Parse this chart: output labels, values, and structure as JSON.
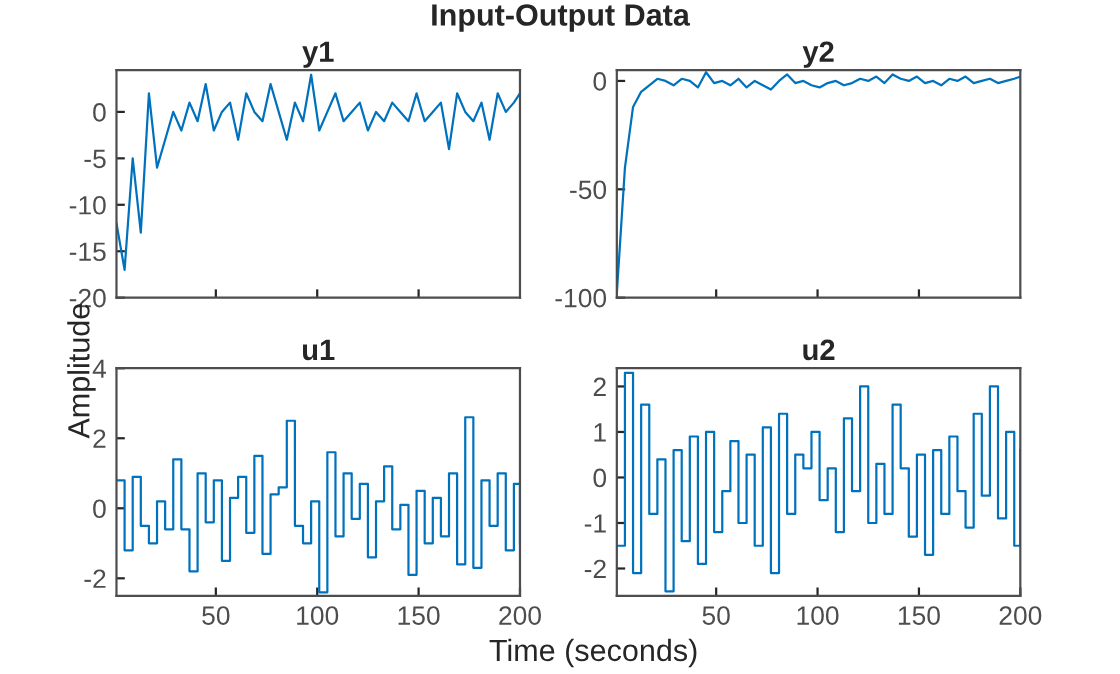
{
  "chart_data": [
    {
      "type": "line",
      "title": "y1",
      "annotations": [
        "Input-Output Data"
      ],
      "tick_labels": "y",
      "x": [
        1,
        5,
        9,
        13,
        17,
        21,
        25,
        29,
        33,
        37,
        41,
        45,
        49,
        53,
        57,
        61,
        65,
        69,
        73,
        77,
        81,
        85,
        89,
        93,
        97,
        101,
        105,
        109,
        113,
        117,
        121,
        125,
        129,
        133,
        137,
        141,
        145,
        149,
        153,
        157,
        161,
        165,
        169,
        173,
        177,
        181,
        185,
        189,
        193,
        197,
        200
      ],
      "series": [
        {
          "color": "#0072bd",
          "values": [
            -12,
            -17,
            -5,
            -13,
            2,
            -6,
            -3,
            0,
            -2,
            1,
            -1,
            3,
            -2,
            0,
            1,
            -3,
            2,
            0,
            -1,
            3,
            0,
            -3,
            1,
            -1,
            4,
            -2,
            0,
            2,
            -1,
            0,
            1,
            -2,
            0,
            -1,
            1,
            0,
            -1,
            2,
            -1,
            0,
            1,
            -4,
            2,
            0,
            -1,
            1,
            -3,
            2,
            0,
            1,
            2
          ]
        }
      ],
      "xlim": [
        1,
        200
      ],
      "xticks": [
        {
          "value": 50,
          "label": null
        },
        {
          "value": 100,
          "label": null
        },
        {
          "value": 150,
          "label": null
        }
      ],
      "ylim": [
        -20,
        4.5
      ],
      "yticks": [
        -20,
        -15,
        -10,
        -5,
        0
      ]
    },
    {
      "type": "line",
      "title": "y2",
      "tick_labels": "y",
      "x": [
        1,
        5,
        9,
        13,
        17,
        21,
        25,
        29,
        33,
        37,
        41,
        45,
        49,
        53,
        57,
        61,
        65,
        69,
        73,
        77,
        81,
        85,
        89,
        93,
        97,
        101,
        105,
        109,
        113,
        117,
        121,
        125,
        129,
        133,
        137,
        141,
        145,
        149,
        153,
        157,
        161,
        165,
        169,
        173,
        177,
        181,
        185,
        189,
        193,
        197,
        200
      ],
      "series": [
        {
          "color": "#0072bd",
          "values": [
            -98,
            -40,
            -12,
            -5,
            -2,
            1,
            0,
            -2,
            1,
            0,
            -3,
            4,
            -1,
            0,
            -2,
            1,
            -3,
            0,
            -2,
            -4,
            0,
            3,
            -1,
            0,
            -2,
            -3,
            -1,
            0,
            -2,
            -1,
            1,
            0,
            2,
            -1,
            3,
            1,
            0,
            2,
            -1,
            0,
            -2,
            1,
            0,
            2,
            -1,
            0,
            1,
            -1,
            0,
            1,
            2
          ]
        }
      ],
      "xlim": [
        1,
        200
      ],
      "xticks": [
        {
          "value": 50,
          "label": null
        },
        {
          "value": 100,
          "label": null
        },
        {
          "value": 150,
          "label": null
        }
      ],
      "ylim": [
        -100,
        5
      ],
      "yticks": [
        -100,
        -50,
        0
      ]
    },
    {
      "type": "step",
      "title": "u1",
      "ylabel": "Amplitude",
      "xlabel": "Time (seconds)",
      "x": [
        1,
        5,
        9,
        13,
        17,
        21,
        25,
        29,
        33,
        37,
        41,
        45,
        49,
        53,
        57,
        61,
        65,
        69,
        73,
        77,
        81,
        85,
        89,
        93,
        97,
        101,
        105,
        109,
        113,
        117,
        121,
        125,
        129,
        133,
        137,
        141,
        145,
        149,
        153,
        157,
        161,
        165,
        169,
        173,
        177,
        181,
        185,
        189,
        193,
        197,
        200
      ],
      "series": [
        {
          "color": "#0072bd",
          "values": [
            0.8,
            -1.2,
            0.9,
            -0.5,
            -1.0,
            0.2,
            -0.6,
            1.4,
            -0.6,
            -1.8,
            1.0,
            -0.4,
            0.8,
            -1.5,
            0.3,
            0.9,
            -0.7,
            1.5,
            -1.3,
            0.4,
            0.6,
            2.5,
            -0.5,
            -1.0,
            0.2,
            -2.4,
            1.6,
            -0.8,
            1.0,
            -0.3,
            0.7,
            -1.4,
            0.2,
            1.2,
            -0.6,
            0.1,
            -1.9,
            0.5,
            -1.0,
            0.3,
            -0.8,
            1.0,
            -1.6,
            2.6,
            -1.7,
            0.8,
            -0.5,
            1.0,
            -1.2,
            0.7,
            -1.0
          ]
        }
      ],
      "xlim": [
        1,
        200
      ],
      "xticks": [
        50,
        100,
        150,
        200
      ],
      "ylim": [
        -2.5,
        4
      ],
      "yticks": [
        -2,
        0,
        2,
        4
      ]
    },
    {
      "type": "step",
      "title": "u2",
      "x": [
        1,
        5,
        9,
        13,
        17,
        21,
        25,
        29,
        33,
        37,
        41,
        45,
        49,
        53,
        57,
        61,
        65,
        69,
        73,
        77,
        81,
        85,
        89,
        93,
        97,
        101,
        105,
        109,
        113,
        117,
        121,
        125,
        129,
        133,
        137,
        141,
        145,
        149,
        153,
        157,
        161,
        165,
        169,
        173,
        177,
        181,
        185,
        189,
        193,
        197,
        200
      ],
      "series": [
        {
          "color": "#0072bd",
          "values": [
            -1.5,
            2.3,
            -2.1,
            1.6,
            -0.8,
            0.4,
            -2.5,
            0.6,
            -1.4,
            0.9,
            -1.9,
            1.0,
            -1.2,
            -0.3,
            0.8,
            -1.0,
            0.5,
            -1.5,
            1.1,
            -2.1,
            1.4,
            -0.8,
            0.5,
            0.2,
            1.0,
            -0.5,
            0.2,
            -1.2,
            1.3,
            -0.3,
            2.0,
            -1.0,
            0.3,
            -0.8,
            1.6,
            0.2,
            -1.3,
            0.5,
            -1.7,
            0.6,
            -0.8,
            0.9,
            -0.3,
            -1.1,
            1.4,
            -0.4,
            2.0,
            -0.9,
            1.0,
            -1.5,
            0.6
          ]
        }
      ],
      "xlim": [
        1,
        200
      ],
      "xticks": [
        50,
        100,
        150,
        200
      ],
      "ylim": [
        -2.6,
        2.4
      ],
      "yticks": [
        -2,
        -1,
        0,
        1,
        2
      ]
    }
  ]
}
